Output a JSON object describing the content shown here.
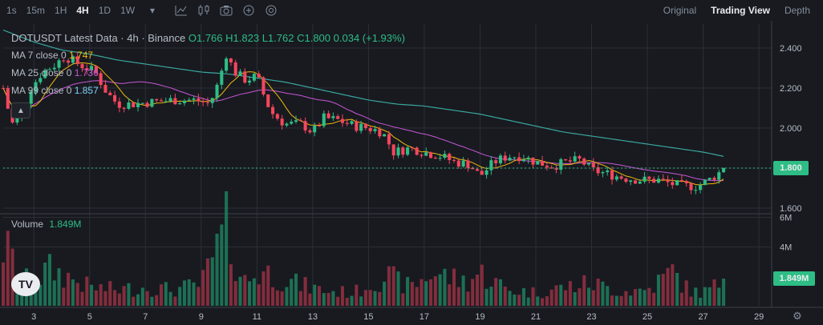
{
  "toolbar": {
    "timeframes": [
      "1s",
      "15m",
      "1H",
      "4H",
      "1D",
      "1W"
    ],
    "active_timeframe": "4H",
    "dropdown_icon": "chevron-down-icon",
    "tools": [
      "indicator-icon",
      "candle-type-icon",
      "camera-icon",
      "add-icon",
      "compare-icon"
    ],
    "views": [
      "Original",
      "Trading View",
      "Depth"
    ],
    "active_view": "Trading View"
  },
  "legend": {
    "title": "DOTUSDT Latest Data · 4h · Binance",
    "open": "O1.766",
    "high": "H1.823",
    "low": "L1.762",
    "close": "C1.800",
    "change": "0.034 (+1.93%)",
    "ma7_label": "MA 7 close 0",
    "ma7_value": "1.747",
    "ma25_label": "MA 25 close 0",
    "ma25_value": "1.736",
    "ma99_label": "MA 99 close 0",
    "ma99_value": "1.857",
    "volume_label": "Volume",
    "volume_value": "1.849M"
  },
  "colors": {
    "up": "#2ebd85",
    "down": "#f6465d",
    "ma7": "#f0b90b",
    "ma25": "#c956d6",
    "ma99": "#3aa79d"
  },
  "price_axis": {
    "ticks": [
      "2.400",
      "2.200",
      "2.000",
      "1.800",
      "1.600"
    ],
    "current": "1.800"
  },
  "volume_axis": {
    "ticks": [
      "6M",
      "4M"
    ],
    "current": "1.849M"
  },
  "time_axis": {
    "ticks": [
      "3",
      "5",
      "7",
      "9",
      "11",
      "13",
      "15",
      "17",
      "19",
      "21",
      "23",
      "25",
      "27",
      "29"
    ]
  },
  "chart_data": {
    "type": "candlestick",
    "symbol": "DOTUSDT",
    "interval": "4h",
    "exchange": "Binance",
    "ylim": [
      1.58,
      2.52
    ],
    "volume_ylim": [
      0,
      6.2
    ],
    "volume_unit": "M",
    "x_range_days": [
      1.9,
      29.4
    ],
    "x_unit": "day of month",
    "candles_day_span": [
      1.9,
      27.8
    ],
    "price_path": [
      [
        1.9,
        2.2
      ],
      [
        2.2,
        2.02
      ],
      [
        2.5,
        2.05
      ],
      [
        2.9,
        2.2
      ],
      [
        3.3,
        2.28
      ],
      [
        3.8,
        2.32
      ],
      [
        4.1,
        2.36
      ],
      [
        4.6,
        2.32
      ],
      [
        5.2,
        2.28
      ],
      [
        5.6,
        2.18
      ],
      [
        6.0,
        2.12
      ],
      [
        6.5,
        2.12
      ],
      [
        7.2,
        2.13
      ],
      [
        8.0,
        2.14
      ],
      [
        8.8,
        2.14
      ],
      [
        9.3,
        2.12
      ],
      [
        9.6,
        2.22
      ],
      [
        9.9,
        2.37
      ],
      [
        10.2,
        2.28
      ],
      [
        10.6,
        2.24
      ],
      [
        11.0,
        2.26
      ],
      [
        11.2,
        2.18
      ],
      [
        11.5,
        2.08
      ],
      [
        12.0,
        2.02
      ],
      [
        12.6,
        2.02
      ],
      [
        13.0,
        1.98
      ],
      [
        13.4,
        2.05
      ],
      [
        13.9,
        2.04
      ],
      [
        14.5,
        2.01
      ],
      [
        15.0,
        2.0
      ],
      [
        15.5,
        1.98
      ],
      [
        15.9,
        1.88
      ],
      [
        16.5,
        1.9
      ],
      [
        17.0,
        1.88
      ],
      [
        17.6,
        1.86
      ],
      [
        18.1,
        1.83
      ],
      [
        18.6,
        1.82
      ],
      [
        19.0,
        1.76
      ],
      [
        19.5,
        1.83
      ],
      [
        20.0,
        1.86
      ],
      [
        20.5,
        1.86
      ],
      [
        21.0,
        1.83
      ],
      [
        21.6,
        1.81
      ],
      [
        22.1,
        1.83
      ],
      [
        22.6,
        1.84
      ],
      [
        23.0,
        1.79
      ],
      [
        23.6,
        1.77
      ],
      [
        24.2,
        1.75
      ],
      [
        24.8,
        1.74
      ],
      [
        25.4,
        1.74
      ],
      [
        25.9,
        1.72
      ],
      [
        26.3,
        1.71
      ],
      [
        26.8,
        1.71
      ],
      [
        27.2,
        1.74
      ],
      [
        27.5,
        1.77
      ],
      [
        27.8,
        1.8
      ]
    ],
    "ma99_path": [
      [
        1.9,
        2.49
      ],
      [
        3.0,
        2.43
      ],
      [
        4.0,
        2.39
      ],
      [
        5.0,
        2.37
      ],
      [
        6.0,
        2.34
      ],
      [
        7.0,
        2.32
      ],
      [
        8.0,
        2.3
      ],
      [
        9.0,
        2.28
      ],
      [
        10.0,
        2.27
      ],
      [
        11.0,
        2.25
      ],
      [
        12.0,
        2.23
      ],
      [
        13.0,
        2.2
      ],
      [
        14.0,
        2.17
      ],
      [
        15.0,
        2.14
      ],
      [
        16.0,
        2.12
      ],
      [
        17.0,
        2.11
      ],
      [
        18.0,
        2.09
      ],
      [
        19.0,
        2.07
      ],
      [
        20.0,
        2.04
      ],
      [
        21.0,
        2.01
      ],
      [
        22.0,
        1.98
      ],
      [
        23.0,
        1.96
      ],
      [
        24.0,
        1.94
      ],
      [
        25.0,
        1.92
      ],
      [
        26.0,
        1.9
      ],
      [
        27.0,
        1.88
      ],
      [
        27.8,
        1.857
      ]
    ],
    "volume_path": [
      [
        2.0,
        4.4
      ],
      [
        2.5,
        2.2
      ],
      [
        3.0,
        1.6
      ],
      [
        3.5,
        2.8
      ],
      [
        4.2,
        2.2
      ],
      [
        5.0,
        1.4
      ],
      [
        6.0,
        1.2
      ],
      [
        7.0,
        1.4
      ],
      [
        8.0,
        1.2
      ],
      [
        9.0,
        1.6
      ],
      [
        9.9,
        5.8
      ],
      [
        10.5,
        1.8
      ],
      [
        11.2,
        2.6
      ],
      [
        12.5,
        1.6
      ],
      [
        13.5,
        1.1
      ],
      [
        14.5,
        1.0
      ],
      [
        15.6,
        2.3
      ],
      [
        16.5,
        1.4
      ],
      [
        17.3,
        2.5
      ],
      [
        18.5,
        1.8
      ],
      [
        19.0,
        2.5
      ],
      [
        20.0,
        1.2
      ],
      [
        21.0,
        1.0
      ],
      [
        22.0,
        1.4
      ],
      [
        23.0,
        1.7
      ],
      [
        24.0,
        1.1
      ],
      [
        25.0,
        1.2
      ],
      [
        25.9,
        2.6
      ],
      [
        26.5,
        1.1
      ],
      [
        27.0,
        1.0
      ],
      [
        27.8,
        1.849
      ]
    ],
    "ma7_current": 1.747,
    "ma25_current": 1.736,
    "ma99_current": 1.857,
    "last_close": 1.8,
    "last_volume_m": 1.849
  }
}
